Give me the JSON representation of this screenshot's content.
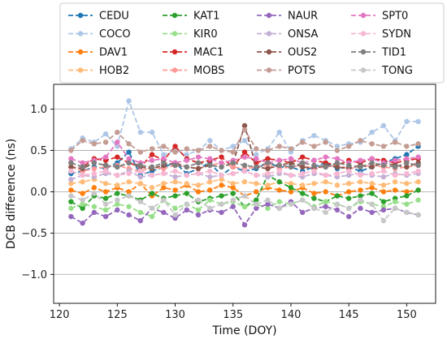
{
  "chart_data": {
    "type": "line",
    "xlabel": "Time (DOY)",
    "ylabel": "DCB difference (ns)",
    "xlim": [
      119.5,
      152.5
    ],
    "ylim": [
      -1.35,
      1.3
    ],
    "x_ticks": [
      120,
      125,
      130,
      135,
      140,
      145,
      150
    ],
    "y_ticks": [
      -1.0,
      -0.5,
      0.0,
      0.5,
      1.0
    ],
    "y_tick_labels": [
      "−1.0",
      "−0.5",
      "0.0",
      "0.5",
      "1.0"
    ],
    "grid": "horizontal",
    "legend_position": "top",
    "line_style": "dashed with circle markers",
    "x": [
      121,
      122,
      123,
      124,
      125,
      126,
      127,
      128,
      129,
      130,
      131,
      132,
      133,
      134,
      135,
      136,
      137,
      138,
      139,
      140,
      141,
      142,
      143,
      144,
      145,
      146,
      147,
      148,
      149,
      150,
      151
    ],
    "series": [
      {
        "name": "CEDU",
        "color": "#1f77b4",
        "values": [
          0.22,
          0.25,
          0.3,
          0.28,
          0.35,
          0.48,
          0.2,
          0.25,
          0.3,
          0.35,
          0.22,
          0.28,
          0.35,
          0.2,
          0.3,
          0.25,
          0.28,
          0.35,
          0.3,
          0.3,
          0.25,
          0.3,
          0.35,
          0.28,
          0.3,
          0.25,
          0.3,
          0.35,
          0.4,
          0.45,
          0.55
        ]
      },
      {
        "name": "COCO",
        "color": "#aec7e8",
        "values": [
          0.52,
          0.65,
          0.6,
          0.7,
          0.55,
          1.1,
          0.72,
          0.72,
          0.45,
          0.5,
          0.45,
          0.5,
          0.62,
          0.5,
          0.55,
          0.62,
          0.45,
          0.52,
          0.72,
          0.48,
          0.62,
          0.68,
          0.62,
          0.55,
          0.58,
          0.6,
          0.72,
          0.8,
          0.62,
          0.85,
          0.85
        ]
      },
      {
        "name": "DAV1",
        "color": "#ff7f0e",
        "values": [
          0.02,
          -0.02,
          0.05,
          0.0,
          0.05,
          0.0,
          0.1,
          -0.05,
          0.05,
          0.02,
          0.08,
          0.0,
          0.02,
          0.08,
          0.05,
          -0.05,
          0.0,
          0.05,
          0.02,
          0.0,
          0.05,
          -0.02,
          0.0,
          -0.05,
          0.0,
          0.02,
          0.05,
          0.0,
          0.02,
          0.0,
          0.02
        ]
      },
      {
        "name": "HOB2",
        "color": "#ffbb78",
        "values": [
          0.1,
          0.12,
          0.15,
          0.1,
          0.08,
          0.12,
          0.1,
          0.05,
          0.1,
          0.12,
          0.1,
          0.08,
          0.12,
          0.15,
          0.1,
          0.12,
          0.1,
          0.08,
          0.12,
          0.1,
          0.08,
          0.1,
          0.12,
          0.08,
          0.1,
          0.12,
          0.1,
          0.08,
          0.12,
          0.1,
          0.12
        ]
      },
      {
        "name": "KAT1",
        "color": "#2ca02c",
        "values": [
          -0.12,
          -0.2,
          -0.05,
          -0.08,
          -0.02,
          -0.05,
          -0.1,
          -0.02,
          -0.08,
          -0.05,
          -0.02,
          -0.12,
          -0.08,
          -0.05,
          -0.02,
          -0.18,
          -0.1,
          0.2,
          0.12,
          0.05,
          -0.02,
          -0.08,
          -0.12,
          -0.05,
          -0.08,
          -0.05,
          -0.02,
          -0.12,
          -0.08,
          -0.05,
          0.02
        ]
      },
      {
        "name": "KIR0",
        "color": "#98df8a",
        "values": [
          -0.2,
          -0.15,
          -0.18,
          -0.22,
          -0.15,
          -0.18,
          -0.25,
          -0.3,
          -0.1,
          -0.2,
          -0.15,
          -0.22,
          -0.1,
          -0.15,
          -0.12,
          -0.18,
          -0.15,
          -0.2,
          -0.12,
          -0.15,
          -0.1,
          -0.18,
          -0.12,
          -0.15,
          -0.2,
          -0.12,
          -0.15,
          -0.18,
          -0.12,
          -0.15,
          -0.1
        ]
      },
      {
        "name": "MAC1",
        "color": "#d62728",
        "values": [
          0.35,
          0.3,
          0.4,
          0.38,
          0.42,
          0.35,
          0.3,
          0.45,
          0.38,
          0.55,
          0.4,
          0.35,
          0.38,
          0.42,
          0.3,
          0.48,
          0.35,
          0.4,
          0.38,
          0.35,
          0.42,
          0.38,
          0.35,
          0.32,
          0.38,
          0.35,
          0.4,
          0.38,
          0.35,
          0.38,
          0.4
        ]
      },
      {
        "name": "MOBS",
        "color": "#ff9896",
        "values": [
          0.3,
          0.25,
          0.28,
          0.3,
          0.32,
          0.28,
          0.25,
          0.3,
          0.28,
          0.32,
          0.3,
          0.28,
          0.32,
          0.35,
          0.3,
          0.28,
          0.3,
          0.32,
          0.28,
          0.3,
          0.32,
          0.28,
          0.3,
          0.32,
          0.28,
          0.3,
          0.32,
          0.3,
          0.28,
          0.3,
          0.32
        ]
      },
      {
        "name": "NAUR",
        "color": "#9467bd",
        "values": [
          -0.3,
          -0.38,
          -0.25,
          -0.3,
          -0.22,
          -0.28,
          -0.35,
          -0.2,
          -0.25,
          -0.32,
          -0.22,
          -0.28,
          -0.22,
          -0.25,
          -0.18,
          -0.4,
          -0.2,
          -0.15,
          -0.2,
          -0.12,
          -0.25,
          -0.2,
          -0.18,
          -0.22,
          -0.3,
          -0.2,
          -0.25,
          -0.22,
          -0.2,
          -0.25,
          -0.28
        ]
      },
      {
        "name": "ONSA",
        "color": "#c5b0d5",
        "values": [
          0.15,
          0.2,
          0.18,
          0.22,
          0.2,
          0.25,
          0.18,
          0.2,
          0.22,
          0.18,
          0.2,
          0.22,
          0.18,
          0.2,
          0.22,
          0.25,
          0.2,
          0.18,
          0.22,
          0.2,
          0.18,
          0.22,
          0.2,
          0.18,
          0.2,
          0.22,
          0.2,
          0.18,
          0.22,
          0.2,
          0.22
        ]
      },
      {
        "name": "OUS2",
        "color": "#8c564b",
        "values": [
          0.3,
          0.28,
          0.35,
          0.32,
          0.3,
          0.35,
          0.3,
          0.28,
          0.32,
          0.35,
          0.3,
          0.28,
          0.32,
          0.3,
          0.35,
          0.8,
          0.3,
          0.28,
          0.32,
          0.35,
          0.3,
          0.28,
          0.32,
          0.3,
          0.28,
          0.32,
          0.3,
          0.35,
          0.32,
          0.3,
          0.35
        ]
      },
      {
        "name": "POTS",
        "color": "#c49c94",
        "values": [
          0.5,
          0.62,
          0.58,
          0.6,
          0.72,
          0.58,
          0.48,
          0.52,
          0.55,
          0.48,
          0.52,
          0.5,
          0.55,
          0.5,
          0.48,
          0.75,
          0.52,
          0.5,
          0.55,
          0.52,
          0.6,
          0.55,
          0.6,
          0.5,
          0.55,
          0.62,
          0.58,
          0.55,
          0.6,
          0.55,
          0.58
        ]
      },
      {
        "name": "SPT0",
        "color": "#e377c2",
        "values": [
          0.4,
          0.35,
          0.38,
          0.42,
          0.6,
          0.4,
          0.35,
          0.38,
          0.4,
          0.35,
          0.38,
          0.42,
          0.4,
          0.35,
          0.38,
          0.42,
          0.4,
          0.35,
          0.38,
          0.4,
          0.35,
          0.38,
          0.42,
          0.4,
          0.35,
          0.38,
          0.4,
          0.35,
          0.38,
          0.4,
          0.42
        ]
      },
      {
        "name": "SYDN",
        "color": "#f7b6d2",
        "values": [
          0.25,
          0.2,
          0.22,
          0.25,
          0.2,
          0.22,
          0.25,
          0.2,
          0.22,
          0.25,
          0.2,
          0.22,
          0.25,
          0.2,
          0.22,
          0.25,
          0.2,
          0.22,
          0.25,
          0.2,
          0.22,
          0.25,
          0.2,
          0.22,
          0.25,
          0.2,
          0.22,
          0.25,
          0.2,
          0.22,
          0.25
        ]
      },
      {
        "name": "TID1",
        "color": "#7f7f7f",
        "values": [
          0.35,
          0.3,
          0.35,
          0.32,
          0.3,
          0.35,
          0.32,
          0.3,
          0.35,
          0.32,
          0.3,
          0.35,
          0.32,
          0.3,
          0.35,
          0.32,
          0.3,
          0.35,
          0.32,
          0.3,
          0.35,
          0.32,
          0.3,
          0.35,
          0.32,
          0.3,
          0.35,
          0.32,
          0.3,
          0.35,
          0.32
        ]
      },
      {
        "name": "TONG",
        "color": "#c7c7c7",
        "values": [
          -0.05,
          -0.1,
          -0.02,
          -0.15,
          -0.1,
          -0.05,
          -0.12,
          -0.2,
          -0.1,
          -0.28,
          -0.15,
          -0.1,
          -0.2,
          -0.15,
          -0.1,
          -0.05,
          -0.15,
          -0.1,
          -0.2,
          -0.15,
          -0.1,
          -0.2,
          -0.25,
          -0.15,
          -0.2,
          -0.1,
          -0.15,
          -0.35,
          -0.2,
          -0.25,
          -0.28
        ]
      }
    ]
  }
}
